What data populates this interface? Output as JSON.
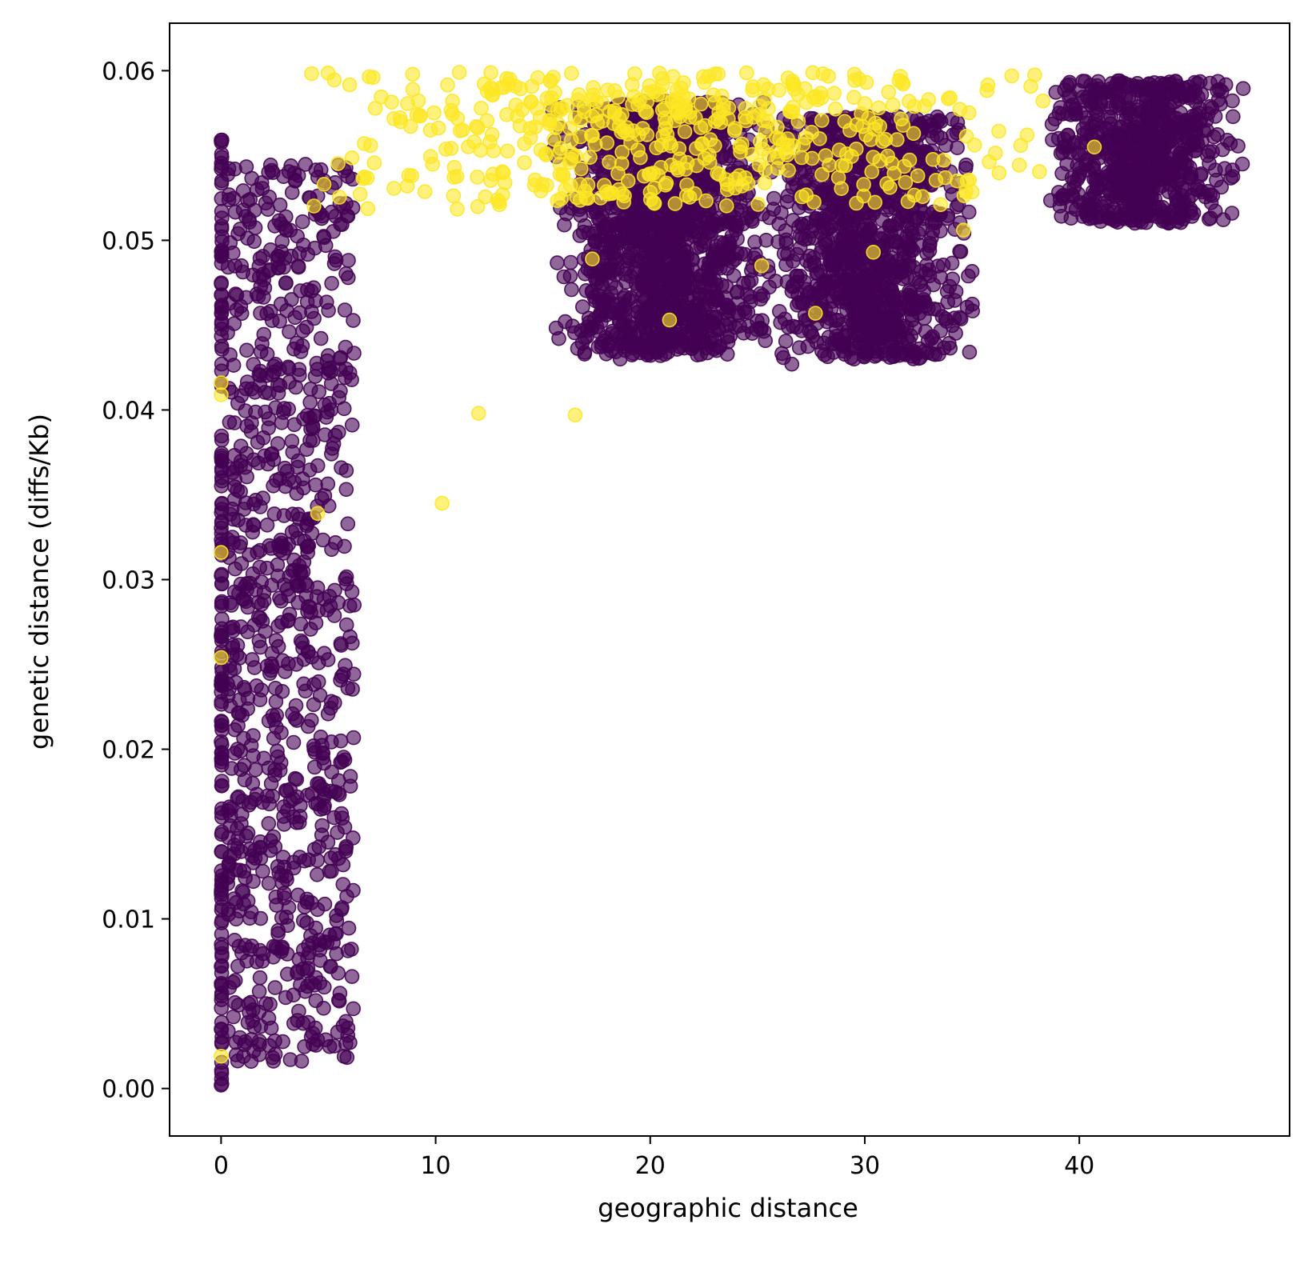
{
  "chart_data": {
    "type": "scatter",
    "title": "",
    "xlabel": "geographic distance",
    "ylabel": "genetic distance (diffs/Kb)",
    "xlim": [
      -2.4,
      49.8
    ],
    "ylim": [
      -0.0028,
      0.0628
    ],
    "xticks": [
      0,
      10,
      20,
      30,
      40
    ],
    "xtick_labels": [
      "0",
      "10",
      "20",
      "30",
      "40"
    ],
    "yticks": [
      0.0,
      0.01,
      0.02,
      0.03,
      0.04,
      0.05,
      0.06
    ],
    "ytick_labels": [
      "0.00",
      "0.01",
      "0.02",
      "0.03",
      "0.04",
      "0.05",
      "0.06"
    ],
    "grid": false,
    "legend": "none",
    "marker_alpha": 0.6,
    "series": [
      {
        "name": "purple group",
        "color": "#440154",
        "clusters": [
          {
            "label": "x = 0 column",
            "n": 160,
            "x_range": [
              0,
              0.05
            ],
            "y_range": [
              0.0002,
              0.056
            ]
          },
          {
            "label": "near-zero cloud",
            "n": 900,
            "x_range": [
              0.3,
              6.2
            ],
            "y_range": [
              0.0015,
              0.0545
            ]
          },
          {
            "label": "mid cloud",
            "n": 1400,
            "x_range": [
              15.3,
              25.8
            ],
            "y_range": [
              0.0432,
              0.0582
            ]
          },
          {
            "label": "right-mid cloud",
            "n": 1100,
            "x_range": [
              25.3,
              35.2
            ],
            "y_range": [
              0.043,
              0.0573
            ]
          },
          {
            "label": "far cloud",
            "n": 700,
            "x_range": [
              38.2,
              47.8
            ],
            "y_range": [
              0.051,
              0.0594
            ]
          }
        ],
        "points": [
          {
            "x": 0,
            "y": 0.0559
          },
          {
            "x": 0,
            "y": 0.0002
          },
          {
            "x": 6.1,
            "y": 0.0066
          },
          {
            "x": 6.2,
            "y": 0.0285
          },
          {
            "x": 5.8,
            "y": 0.0437
          },
          {
            "x": 1.4,
            "y": 0.0016
          },
          {
            "x": 18.6,
            "y": 0.043
          },
          {
            "x": 26.6,
            "y": 0.0427
          },
          {
            "x": 29.5,
            "y": 0.043
          },
          {
            "x": 41.8,
            "y": 0.0594
          },
          {
            "x": 47.6,
            "y": 0.0545
          }
        ]
      },
      {
        "name": "yellow group",
        "color": "#fde725",
        "clusters": [
          {
            "label": "upper band",
            "n": 500,
            "x_range": [
              2.5,
              40.2
            ],
            "y_range": [
              0.0518,
              0.0599
            ]
          }
        ],
        "points": [
          {
            "x": 0,
            "y": 0.0019
          },
          {
            "x": 0,
            "y": 0.0254
          },
          {
            "x": 0,
            "y": 0.0316
          },
          {
            "x": 0,
            "y": 0.0409
          },
          {
            "x": 0,
            "y": 0.0416
          },
          {
            "x": 4.5,
            "y": 0.0339
          },
          {
            "x": 10.3,
            "y": 0.0345
          },
          {
            "x": 12.0,
            "y": 0.0398
          },
          {
            "x": 16.5,
            "y": 0.0397
          },
          {
            "x": 11.1,
            "y": 0.0599
          },
          {
            "x": 17.3,
            "y": 0.0489
          },
          {
            "x": 20.9,
            "y": 0.0453
          },
          {
            "x": 25.2,
            "y": 0.0485
          },
          {
            "x": 27.7,
            "y": 0.0457
          },
          {
            "x": 30.4,
            "y": 0.0493
          },
          {
            "x": 34.6,
            "y": 0.0506
          },
          {
            "x": 34.3,
            "y": 0.0535
          },
          {
            "x": 30.4,
            "y": 0.0549
          },
          {
            "x": 40.7,
            "y": 0.0555
          },
          {
            "x": 18.2,
            "y": 0.0528
          },
          {
            "x": 4.8,
            "y": 0.0533
          }
        ]
      }
    ]
  }
}
